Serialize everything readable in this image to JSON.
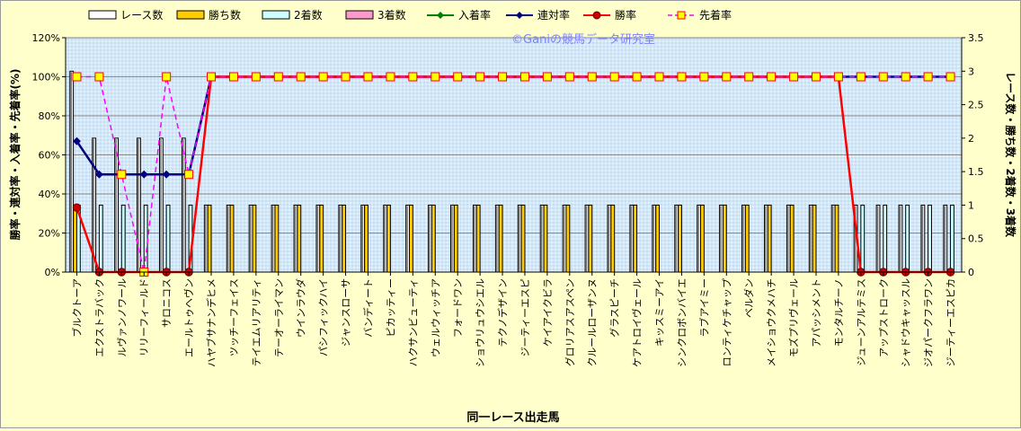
{
  "chart_data": {
    "type": "bar+line",
    "watermark": "©Ganiの競馬データ研究室",
    "xlabel": "同一レース出走馬",
    "ylabel_left": "勝率・連対率・入着率・先着率(%)",
    "ylabel_right": "レース数・勝ち数・2着数・3着数",
    "ylim_left": [
      0,
      120
    ],
    "yticks_left": [
      "0%",
      "20%",
      "40%",
      "60%",
      "80%",
      "100%",
      "120%"
    ],
    "ylim_right": [
      0,
      3.5
    ],
    "yticks_right": [
      "0",
      "0.5",
      "1",
      "1.5",
      "2",
      "2.5",
      "3",
      "3.5"
    ],
    "grid": true,
    "legend_position": "top",
    "legend": [
      {
        "label": "レース数",
        "kind": "bar",
        "color": "#ffffff"
      },
      {
        "label": "勝ち数",
        "kind": "bar",
        "color": "#ffcc00"
      },
      {
        "label": "2着数",
        "kind": "bar",
        "color": "#ccffff"
      },
      {
        "label": "3着数",
        "kind": "bar",
        "color": "#ff99cc"
      },
      {
        "label": "入着率",
        "kind": "line",
        "color": "#008000"
      },
      {
        "label": "連対率",
        "kind": "line",
        "color": "#000080"
      },
      {
        "label": "勝率",
        "kind": "line",
        "color": "#ff0000"
      },
      {
        "label": "先着率",
        "kind": "dash",
        "color": "#ff00ff"
      }
    ],
    "categories": [
      "ブルクトーア",
      "エクストラバック",
      "ルヴァンノワール",
      "リリーフィールド",
      "サロニコス",
      "エールトゥヘヴン",
      "ハヤブサナンデヒメ",
      "ツッチーフェイス",
      "テイエムリアリティ",
      "テーオーライマン",
      "ウインラウダ",
      "パシフィックハイ",
      "ジャンスローサ",
      "バンディート",
      "ピカッティー",
      "ハクサンビューティ",
      "ウェルウィッチア",
      "フォードワン",
      "ショウリュウシエル",
      "テクノデザイン",
      "ジーティーエスピ",
      "ケイアイクビラ",
      "グロリアスアスペン",
      "クルールローザンヌ",
      "グラスピーチ",
      "ケアトロイヴェール",
      "キッスミーアイ",
      "シンクロボンバイエ",
      "ラブアイミー",
      "ロンティケチャップ",
      "ベルダン",
      "メイショウクメハチ",
      "モズプリヴェール",
      "アパッシメント",
      "モンタルチーノ",
      "ジューンアルテミス",
      "アップストローク",
      "シャドウキャッスル",
      "ジオパークフラワン",
      "ジーティーエスピカ"
    ],
    "series": [
      {
        "name": "レース数",
        "values": [
          3,
          2,
          2,
          2,
          2,
          2,
          1,
          1,
          1,
          1,
          1,
          1,
          1,
          1,
          1,
          1,
          1,
          1,
          1,
          1,
          1,
          1,
          1,
          1,
          1,
          1,
          1,
          1,
          1,
          1,
          1,
          1,
          1,
          1,
          1,
          1,
          1,
          1,
          1,
          1
        ]
      },
      {
        "name": "勝ち数",
        "values": [
          1,
          0,
          0,
          0,
          0,
          0,
          1,
          1,
          1,
          1,
          1,
          1,
          1,
          1,
          1,
          1,
          1,
          1,
          1,
          1,
          1,
          1,
          1,
          1,
          1,
          1,
          1,
          1,
          1,
          1,
          1,
          1,
          1,
          1,
          1,
          0,
          0,
          0,
          0,
          0
        ]
      },
      {
        "name": "2着数",
        "values": [
          1,
          1,
          1,
          1,
          1,
          1,
          0,
          0,
          0,
          0,
          0,
          0,
          0,
          0,
          0,
          0,
          0,
          0,
          0,
          0,
          0,
          0,
          0,
          0,
          0,
          0,
          0,
          0,
          0,
          0,
          0,
          0,
          0,
          0,
          0,
          1,
          1,
          1,
          1,
          1
        ]
      },
      {
        "name": "3着数",
        "values": [
          0,
          0,
          0,
          0,
          0,
          0,
          0,
          0,
          0,
          0,
          0,
          0,
          0,
          0,
          0,
          0,
          0,
          0,
          0,
          0,
          0,
          0,
          0,
          0,
          0,
          0,
          0,
          0,
          0,
          0,
          0,
          0,
          0,
          0,
          0,
          0,
          0,
          0,
          0,
          0
        ]
      },
      {
        "name": "入着率",
        "values": [
          67,
          50,
          50,
          50,
          50,
          50,
          100,
          100,
          100,
          100,
          100,
          100,
          100,
          100,
          100,
          100,
          100,
          100,
          100,
          100,
          100,
          100,
          100,
          100,
          100,
          100,
          100,
          100,
          100,
          100,
          100,
          100,
          100,
          100,
          100,
          100,
          100,
          100,
          100,
          100
        ]
      },
      {
        "name": "連対率",
        "values": [
          67,
          50,
          50,
          50,
          50,
          50,
          100,
          100,
          100,
          100,
          100,
          100,
          100,
          100,
          100,
          100,
          100,
          100,
          100,
          100,
          100,
          100,
          100,
          100,
          100,
          100,
          100,
          100,
          100,
          100,
          100,
          100,
          100,
          100,
          100,
          100,
          100,
          100,
          100,
          100
        ]
      },
      {
        "name": "勝率",
        "values": [
          33,
          0,
          0,
          0,
          0,
          0,
          100,
          100,
          100,
          100,
          100,
          100,
          100,
          100,
          100,
          100,
          100,
          100,
          100,
          100,
          100,
          100,
          100,
          100,
          100,
          100,
          100,
          100,
          100,
          100,
          100,
          100,
          100,
          100,
          100,
          0,
          0,
          0,
          0,
          0
        ]
      },
      {
        "name": "先着率",
        "values": [
          100,
          100,
          50,
          0,
          100,
          50,
          100,
          100,
          100,
          100,
          100,
          100,
          100,
          100,
          100,
          100,
          100,
          100,
          100,
          100,
          100,
          100,
          100,
          100,
          100,
          100,
          100,
          100,
          100,
          100,
          100,
          100,
          100,
          100,
          100,
          100,
          100,
          100,
          100,
          100
        ]
      }
    ]
  }
}
